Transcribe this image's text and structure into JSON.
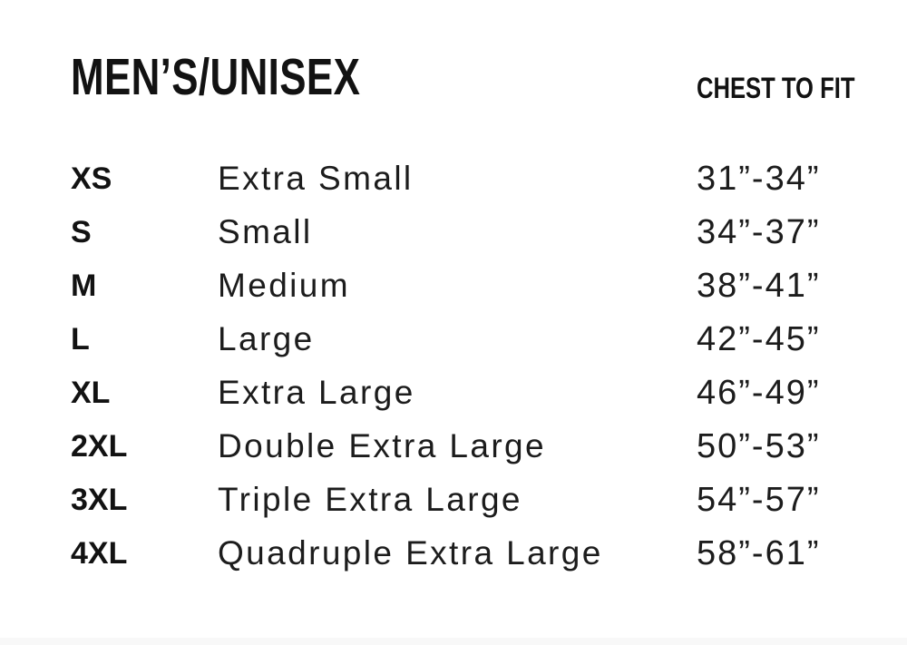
{
  "colors": {
    "bg": "#ffffff",
    "text": "#1c1c1c",
    "heading": "#121212",
    "footer-strip": "#f8f8f8"
  },
  "header": {
    "title": "MEN’S/UNISEX",
    "chest_to_fit_label": "CHEST TO FIT"
  },
  "chart_data": {
    "type": "table",
    "title": "MEN’S/UNISEX",
    "columns": [
      {
        "id": "size_code",
        "label": ""
      },
      {
        "id": "size_name",
        "label": ""
      },
      {
        "id": "chest_to_fit",
        "label": "CHEST TO FIT"
      }
    ],
    "rows": [
      {
        "size_code": "XS",
        "size_name": "Extra Small",
        "chest_to_fit": "31”-34”"
      },
      {
        "size_code": "S",
        "size_name": "Small",
        "chest_to_fit": "34”-37”"
      },
      {
        "size_code": "M",
        "size_name": "Medium",
        "chest_to_fit": "38”-41”"
      },
      {
        "size_code": "L",
        "size_name": "Large",
        "chest_to_fit": "42”-45”"
      },
      {
        "size_code": "XL",
        "size_name": "Extra Large",
        "chest_to_fit": "46”-49”"
      },
      {
        "size_code": "2XL",
        "size_name": "Double Extra Large",
        "chest_to_fit": "50”-53”"
      },
      {
        "size_code": "3XL",
        "size_name": "Triple Extra Large",
        "chest_to_fit": "54”-57”"
      },
      {
        "size_code": "4XL",
        "size_name": "Quadruple Extra Large",
        "chest_to_fit": "58”-61”"
      }
    ]
  }
}
